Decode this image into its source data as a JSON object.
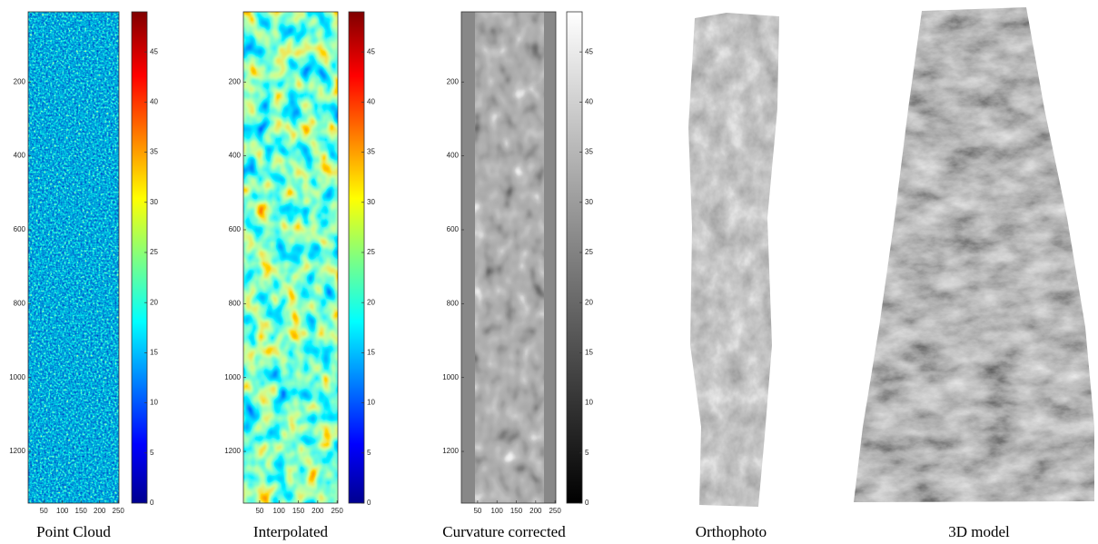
{
  "panels": [
    {
      "caption": "Point Cloud",
      "ylim": [
        10,
        1340
      ],
      "yticks": [
        200,
        400,
        600,
        800,
        1000,
        1200
      ],
      "xlim": [
        8,
        252
      ],
      "xticks": [
        50,
        100,
        150,
        200,
        250
      ],
      "clim": [
        0,
        49
      ],
      "cticks": [
        0,
        5,
        10,
        15,
        20,
        25,
        30,
        35,
        40,
        45
      ],
      "colormap": "jet"
    },
    {
      "caption": "Interpolated",
      "ylim": [
        10,
        1340
      ],
      "yticks": [
        200,
        400,
        600,
        800,
        1000,
        1200
      ],
      "xlim": [
        8,
        252
      ],
      "xticks": [
        50,
        100,
        150,
        200,
        250
      ],
      "clim": [
        0,
        49
      ],
      "cticks": [
        0,
        5,
        10,
        15,
        20,
        25,
        30,
        35,
        40,
        45
      ],
      "colormap": "jet"
    },
    {
      "caption": "Curvature corrected",
      "ylim": [
        10,
        1340
      ],
      "yticks": [
        200,
        400,
        600,
        800,
        1000,
        1200
      ],
      "xlim": [
        8,
        252
      ],
      "xticks": [
        50,
        100,
        150,
        200,
        250
      ],
      "clim": [
        0,
        49
      ],
      "cticks": [
        0,
        5,
        10,
        15,
        20,
        25,
        30,
        35,
        40,
        45
      ],
      "colormap": "gray"
    },
    {
      "caption": "Orthophoto"
    },
    {
      "caption": "3D model"
    }
  ]
}
